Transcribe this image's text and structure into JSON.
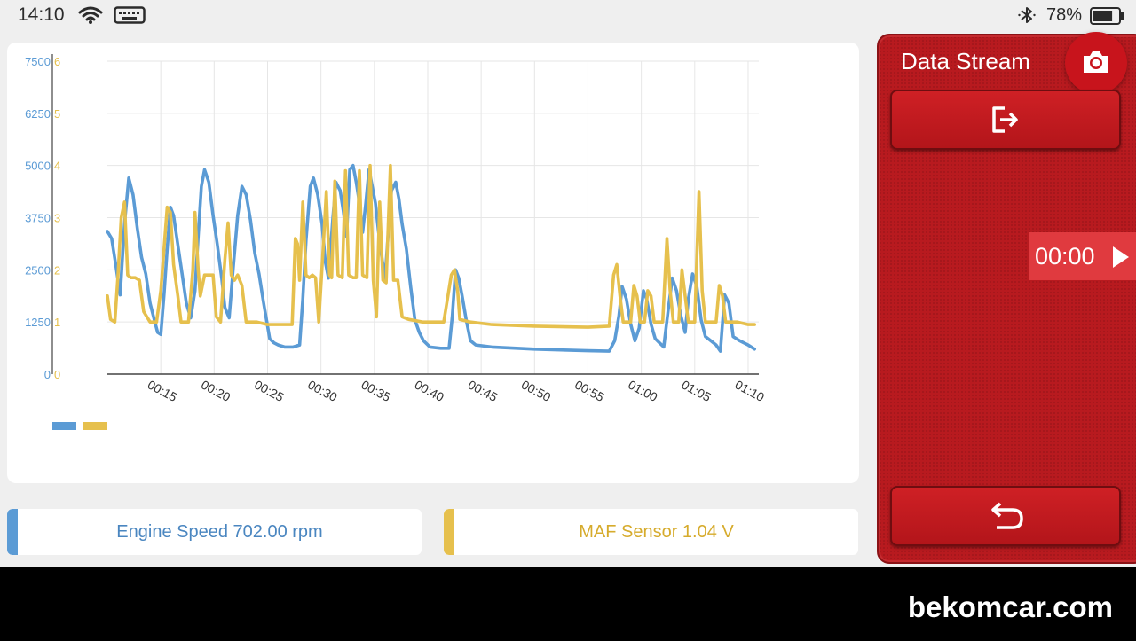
{
  "status_bar": {
    "time": "14:10",
    "battery_percent": "78%",
    "battery_level": 0.78,
    "icons": [
      "wifi-icon",
      "keyboard-icon",
      "bluetooth-icon",
      "battery-icon"
    ]
  },
  "chart_data": {
    "type": "line",
    "left_axis_ticks": [
      "0",
      "1250",
      "2500",
      "3750",
      "5000",
      "6250",
      "7500"
    ],
    "right_axis_ticks": [
      "0",
      "1",
      "2",
      "3",
      "4",
      "5",
      "6"
    ],
    "x_tick_labels": [
      "00:15",
      "00:20",
      "00:25",
      "00:30",
      "00:35",
      "00:40",
      "00:45",
      "00:50",
      "00:55",
      "01:00",
      "01:05",
      "01:10"
    ],
    "x_ticks_seconds": [
      15,
      20,
      25,
      30,
      35,
      40,
      45,
      50,
      55,
      60,
      65,
      70
    ],
    "xlim": [
      10,
      71
    ],
    "grid": true,
    "series": [
      {
        "axis": "left",
        "ylim": [
          0,
          7500
        ],
        "color": "#5b9bd5",
        "points": [
          [
            10.0,
            3420
          ],
          [
            10.4,
            3250
          ],
          [
            10.8,
            2600
          ],
          [
            11.2,
            1900
          ],
          [
            11.6,
            3600
          ],
          [
            12.0,
            4700
          ],
          [
            12.4,
            4300
          ],
          [
            12.8,
            3500
          ],
          [
            13.2,
            2800
          ],
          [
            13.6,
            2400
          ],
          [
            14.0,
            1700
          ],
          [
            14.4,
            1300
          ],
          [
            14.7,
            1000
          ],
          [
            15.0,
            950
          ],
          [
            15.3,
            1900
          ],
          [
            15.6,
            3000
          ],
          [
            15.9,
            4000
          ],
          [
            16.2,
            3800
          ],
          [
            16.6,
            3100
          ],
          [
            17.0,
            2400
          ],
          [
            17.4,
            1700
          ],
          [
            17.8,
            1350
          ],
          [
            18.2,
            2000
          ],
          [
            18.5,
            3300
          ],
          [
            18.8,
            4500
          ],
          [
            19.1,
            4900
          ],
          [
            19.5,
            4600
          ],
          [
            19.9,
            3800
          ],
          [
            20.3,
            3100
          ],
          [
            20.7,
            2300
          ],
          [
            21.0,
            1600
          ],
          [
            21.4,
            1350
          ],
          [
            21.8,
            2600
          ],
          [
            22.2,
            3800
          ],
          [
            22.6,
            4500
          ],
          [
            23.0,
            4300
          ],
          [
            23.4,
            3700
          ],
          [
            23.8,
            2900
          ],
          [
            24.2,
            2400
          ],
          [
            24.6,
            1750
          ],
          [
            24.9,
            1300
          ],
          [
            25.2,
            850
          ],
          [
            25.6,
            750
          ],
          [
            26.0,
            700
          ],
          [
            26.6,
            650
          ],
          [
            27.4,
            650
          ],
          [
            28.0,
            700
          ],
          [
            28.3,
            1800
          ],
          [
            28.6,
            3200
          ],
          [
            29.0,
            4500
          ],
          [
            29.3,
            4700
          ],
          [
            29.7,
            4300
          ],
          [
            30.1,
            3600
          ],
          [
            30.4,
            2700
          ],
          [
            30.7,
            2300
          ],
          [
            31.1,
            3700
          ],
          [
            31.4,
            4600
          ],
          [
            31.8,
            4400
          ],
          [
            32.1,
            3900
          ],
          [
            32.4,
            3300
          ],
          [
            32.7,
            4900
          ],
          [
            33.0,
            5000
          ],
          [
            33.3,
            4600
          ],
          [
            33.6,
            4100
          ],
          [
            33.9,
            3400
          ],
          [
            34.2,
            4100
          ],
          [
            34.5,
            4900
          ],
          [
            34.8,
            4500
          ],
          [
            35.1,
            4100
          ],
          [
            35.4,
            3400
          ],
          [
            35.7,
            2800
          ],
          [
            36.0,
            2300
          ],
          [
            36.3,
            3400
          ],
          [
            36.6,
            4400
          ],
          [
            37.0,
            4600
          ],
          [
            37.3,
            4200
          ],
          [
            37.6,
            3600
          ],
          [
            38.0,
            3000
          ],
          [
            38.4,
            2100
          ],
          [
            38.8,
            1300
          ],
          [
            39.2,
            1000
          ],
          [
            39.6,
            800
          ],
          [
            40.2,
            650
          ],
          [
            41.2,
            620
          ],
          [
            42.0,
            620
          ],
          [
            42.3,
            1400
          ],
          [
            42.6,
            2500
          ],
          [
            42.9,
            2300
          ],
          [
            43.2,
            1900
          ],
          [
            43.6,
            1300
          ],
          [
            44.0,
            800
          ],
          [
            44.5,
            700
          ],
          [
            46.0,
            650
          ],
          [
            50.0,
            600
          ],
          [
            55.0,
            560
          ],
          [
            57.0,
            550
          ],
          [
            57.5,
            800
          ],
          [
            57.9,
            1400
          ],
          [
            58.2,
            2100
          ],
          [
            58.6,
            1800
          ],
          [
            59.0,
            1200
          ],
          [
            59.4,
            800
          ],
          [
            59.8,
            1100
          ],
          [
            60.2,
            2000
          ],
          [
            60.5,
            1800
          ],
          [
            60.9,
            1200
          ],
          [
            61.3,
            850
          ],
          [
            61.7,
            750
          ],
          [
            62.1,
            650
          ],
          [
            62.5,
            1500
          ],
          [
            62.9,
            2300
          ],
          [
            63.3,
            2000
          ],
          [
            63.7,
            1400
          ],
          [
            64.1,
            1000
          ],
          [
            64.4,
            1800
          ],
          [
            64.8,
            2400
          ],
          [
            65.2,
            2100
          ],
          [
            65.6,
            1300
          ],
          [
            66.0,
            900
          ],
          [
            66.5,
            800
          ],
          [
            67.0,
            700
          ],
          [
            67.4,
            550
          ],
          [
            67.8,
            1900
          ],
          [
            68.2,
            1700
          ],
          [
            68.6,
            900
          ],
          [
            69.2,
            800
          ],
          [
            70.0,
            700
          ],
          [
            70.6,
            600
          ]
        ]
      },
      {
        "axis": "right",
        "ylim": [
          0,
          6
        ],
        "color": "#e6c04d",
        "points": [
          [
            10.0,
            1.5
          ],
          [
            10.3,
            1.05
          ],
          [
            10.7,
            1.0
          ],
          [
            11.0,
            1.9
          ],
          [
            11.3,
            3.0
          ],
          [
            11.6,
            3.3
          ],
          [
            11.9,
            1.9
          ],
          [
            12.2,
            1.85
          ],
          [
            12.6,
            1.85
          ],
          [
            13.0,
            1.8
          ],
          [
            13.4,
            1.2
          ],
          [
            14.0,
            1.0
          ],
          [
            14.6,
            1.0
          ],
          [
            15.0,
            1.6
          ],
          [
            15.3,
            2.4
          ],
          [
            15.6,
            3.2
          ],
          [
            15.9,
            3.1
          ],
          [
            16.2,
            2.1
          ],
          [
            16.6,
            1.5
          ],
          [
            16.9,
            1.0
          ],
          [
            17.6,
            1.0
          ],
          [
            18.0,
            2.0
          ],
          [
            18.2,
            3.1
          ],
          [
            18.5,
            2.0
          ],
          [
            18.7,
            1.5
          ],
          [
            19.1,
            1.9
          ],
          [
            19.6,
            1.9
          ],
          [
            19.9,
            1.9
          ],
          [
            20.2,
            1.1
          ],
          [
            20.6,
            1.0
          ],
          [
            21.0,
            2.2
          ],
          [
            21.3,
            2.9
          ],
          [
            21.6,
            1.9
          ],
          [
            21.9,
            1.8
          ],
          [
            22.2,
            1.9
          ],
          [
            22.6,
            1.7
          ],
          [
            23.0,
            1.0
          ],
          [
            24.0,
            1.0
          ],
          [
            25.0,
            0.95
          ],
          [
            26.0,
            0.95
          ],
          [
            27.3,
            0.95
          ],
          [
            27.6,
            2.6
          ],
          [
            27.8,
            2.5
          ],
          [
            28.0,
            1.8
          ],
          [
            28.3,
            3.3
          ],
          [
            28.6,
            1.9
          ],
          [
            28.9,
            1.85
          ],
          [
            29.2,
            1.9
          ],
          [
            29.5,
            1.85
          ],
          [
            29.8,
            1.0
          ],
          [
            30.2,
            2.4
          ],
          [
            30.5,
            3.5
          ],
          [
            30.8,
            1.9
          ],
          [
            31.0,
            1.85
          ],
          [
            31.3,
            3.7
          ],
          [
            31.6,
            1.9
          ],
          [
            32.0,
            1.85
          ],
          [
            32.3,
            3.9
          ],
          [
            32.6,
            1.9
          ],
          [
            33.0,
            1.85
          ],
          [
            33.3,
            1.85
          ],
          [
            33.6,
            3.9
          ],
          [
            33.9,
            1.9
          ],
          [
            34.3,
            1.85
          ],
          [
            34.6,
            4.0
          ],
          [
            34.9,
            1.8
          ],
          [
            35.2,
            1.1
          ],
          [
            35.5,
            3.3
          ],
          [
            35.8,
            1.8
          ],
          [
            36.1,
            1.75
          ],
          [
            36.5,
            4.0
          ],
          [
            36.8,
            1.8
          ],
          [
            37.2,
            1.8
          ],
          [
            37.6,
            1.1
          ],
          [
            38.2,
            1.05
          ],
          [
            39.5,
            1.0
          ],
          [
            40.5,
            1.0
          ],
          [
            41.5,
            1.0
          ],
          [
            42.2,
            1.9
          ],
          [
            42.5,
            2.0
          ],
          [
            42.8,
            1.6
          ],
          [
            43.0,
            1.05
          ],
          [
            44.0,
            1.0
          ],
          [
            46.0,
            0.95
          ],
          [
            50.0,
            0.92
          ],
          [
            55.0,
            0.9
          ],
          [
            57.0,
            0.92
          ],
          [
            57.4,
            1.9
          ],
          [
            57.7,
            2.1
          ],
          [
            58.0,
            1.5
          ],
          [
            58.3,
            1.0
          ],
          [
            59.0,
            1.0
          ],
          [
            59.3,
            1.7
          ],
          [
            59.6,
            1.5
          ],
          [
            59.9,
            1.0
          ],
          [
            60.3,
            1.0
          ],
          [
            60.6,
            1.6
          ],
          [
            60.9,
            1.5
          ],
          [
            61.2,
            1.0
          ],
          [
            62.0,
            1.0
          ],
          [
            62.4,
            2.6
          ],
          [
            62.7,
            1.6
          ],
          [
            63.0,
            1.0
          ],
          [
            63.5,
            1.0
          ],
          [
            63.8,
            2.0
          ],
          [
            64.1,
            1.5
          ],
          [
            64.4,
            1.0
          ],
          [
            65.0,
            1.0
          ],
          [
            65.4,
            3.5
          ],
          [
            65.7,
            1.6
          ],
          [
            66.0,
            1.0
          ],
          [
            67.0,
            1.0
          ],
          [
            67.3,
            1.7
          ],
          [
            67.6,
            1.5
          ],
          [
            67.9,
            1.0
          ],
          [
            69.0,
            1.0
          ],
          [
            70.0,
            0.95
          ],
          [
            70.6,
            0.95
          ]
        ]
      }
    ]
  },
  "legend": {
    "swatch_colors": [
      "#5b9bd5",
      "#e6c04d"
    ]
  },
  "readings": {
    "engine_speed": "Engine Speed 702.00 rpm",
    "maf_sensor": "MAF Sensor 1.04 V"
  },
  "side_panel": {
    "title": "Data Stream",
    "timer": "00:00",
    "icons": [
      "camera-icon",
      "exit-icon",
      "play-icon",
      "back-icon"
    ]
  },
  "watermark": "bekomcar.com"
}
